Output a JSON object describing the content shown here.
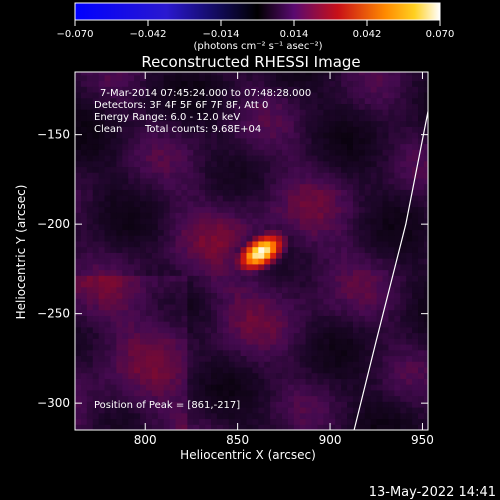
{
  "chart_data": {
    "type": "heatmap",
    "title": "Reconstructed RHESSI Image",
    "xlabel": "Heliocentric X (arcsec)",
    "ylabel": "Heliocentric Y (arcsec)",
    "xlim": [
      762,
      953
    ],
    "ylim": [
      -315,
      -115
    ],
    "x_ticks": [
      800,
      850,
      900,
      950
    ],
    "y_ticks": [
      -150,
      -200,
      -250,
      -300
    ],
    "colorbar": {
      "range": [
        -0.07,
        0.07
      ],
      "tick_values": [
        -0.07,
        -0.042,
        -0.014,
        0.014,
        0.042,
        0.07
      ],
      "tick_labels": [
        "−0.070",
        "−0.042",
        "−0.014",
        "0.014",
        "0.042",
        "0.070"
      ],
      "unit_label": "(photons cm⁻² s⁻¹ asec⁻²)"
    },
    "annotations": {
      "time_range": "7-Mar-2014 07:45:24.000 to 07:48:28.000",
      "detectors": "Detectors: 3F 4F 5F 6F 7F 8F, Att 0",
      "energy_range": "Energy Range: 6.0 - 12.0 keV",
      "method": "Clean",
      "total_counts": "Total counts: 9.68E+04",
      "peak_position": "Position of Peak = [861,-217]"
    },
    "peak": {
      "x": 861,
      "y": -217,
      "value": 0.07
    },
    "source_sigma_major": 10.5,
    "source_sigma_minor": 6.0,
    "source_orientation_deg": 35,
    "limb_points": [
      [
        953,
        -137
      ],
      [
        941,
        -200
      ],
      [
        925,
        -265
      ],
      [
        913,
        -315
      ]
    ],
    "timestamp": "13-May-2022 14:41"
  }
}
